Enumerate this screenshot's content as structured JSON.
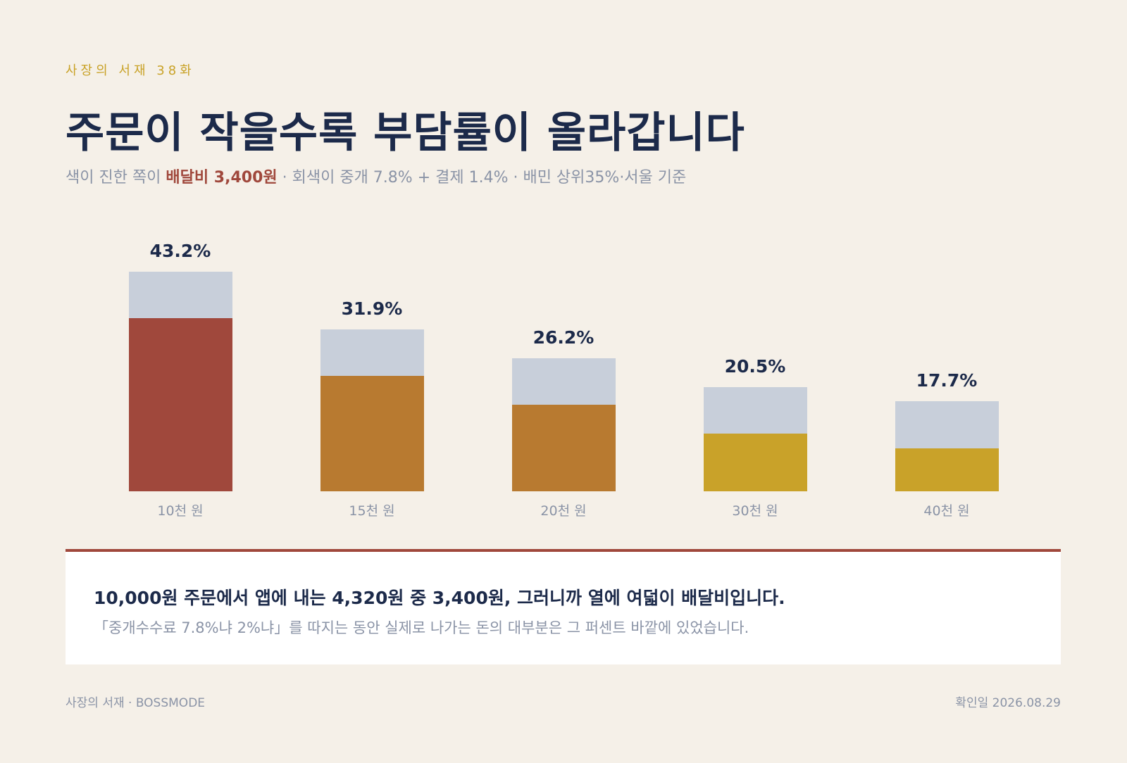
{
  "header": {
    "eyebrow": "사장의 서재 38화",
    "title": "주문이 작을수록 부담률이 올라갑니다",
    "subtitle_pre": "색이 진한 쪽이 ",
    "subtitle_highlight": "배달비 3,400원",
    "subtitle_post": " · 회색이 중개 7.8% + 결제 1.4% · 배민 상위35%·서울 기준"
  },
  "chart_data": {
    "type": "bar",
    "stacked": true,
    "categories": [
      "10천 원",
      "15천 원",
      "20천 원",
      "30천 원",
      "40천 원"
    ],
    "totals_label": [
      "43.2%",
      "31.9%",
      "26.2%",
      "20.5%",
      "17.7%"
    ],
    "totals": [
      43.2,
      31.9,
      26.2,
      20.5,
      17.7
    ],
    "series": [
      {
        "values": [
          34.0,
          22.7,
          17.0,
          11.3,
          8.5
        ]
      },
      {
        "values": [
          9.2,
          9.2,
          9.2,
          9.2,
          9.2
        ]
      }
    ],
    "ylim": [
      0,
      43.2
    ],
    "grid": false,
    "colors": {
      "bottom": [
        "#a0483c",
        "#b87a30",
        "#b87a30",
        "#c9a229",
        "#c9a229"
      ],
      "top": "#c8cfda"
    }
  },
  "callout": {
    "main": "10,000원 주문에서 앱에 내는 4,320원 중 3,400원, 그러니까 열에 여덟이 배달비입니다.",
    "sub": "「중개수수료 7.8%냐 2%냐」를 따지는 동안 실제로 나가는 돈의 대부분은 그 퍼센트 바깥에 있었습니다."
  },
  "footer": {
    "left": "사장의 서재 · BOSSMODE",
    "right": "확인일 2026.08.29"
  },
  "theme": {
    "accent": "#a0483c",
    "navy": "#1c2a4a",
    "gold": "#c9a227",
    "background": "#f5f0e8"
  }
}
